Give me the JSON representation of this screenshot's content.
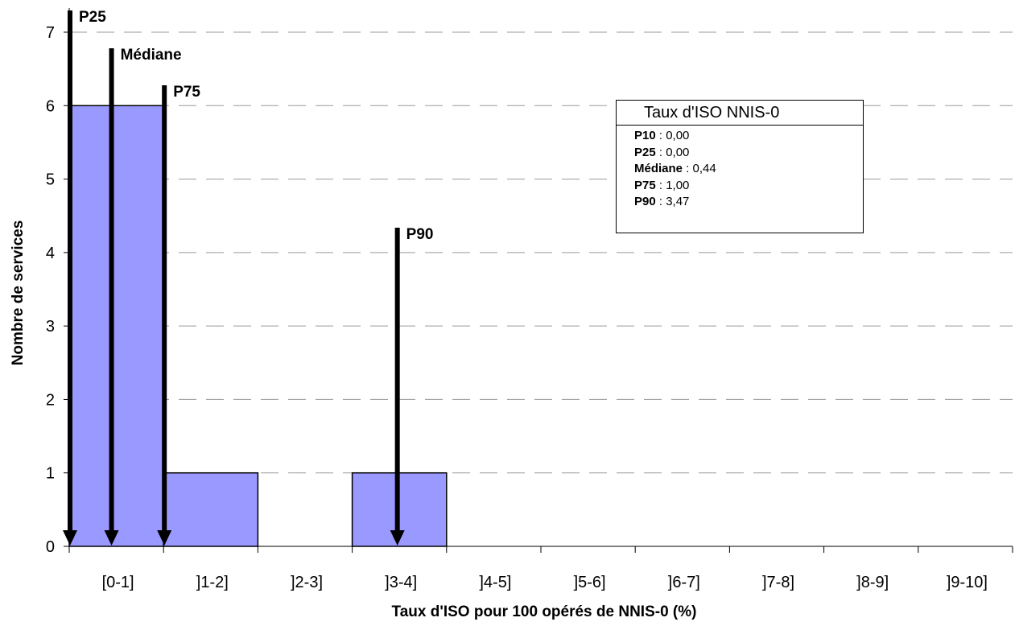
{
  "chart_data": {
    "type": "bar",
    "categories": [
      "[0-1]",
      "]1-2]",
      "]2-3]",
      "]3-4]",
      "]4-5]",
      "]5-6]",
      "]6-7]",
      "]7-8]",
      "]8-9]",
      "]9-10]"
    ],
    "values": [
      6,
      1,
      0,
      1,
      0,
      0,
      0,
      0,
      0,
      0
    ],
    "xlabel": "Taux d'ISO pour 100 opérés de NNIS-0 (%)",
    "ylabel": "Nombre de services",
    "ylim": [
      0,
      7
    ],
    "yticks": [
      "0",
      "1",
      "2",
      "3",
      "4",
      "5",
      "6",
      "7"
    ],
    "grid": true,
    "bar_color": "#9999ff",
    "markers": [
      {
        "label": "P25",
        "x": 0.0
      },
      {
        "label": "Médiane",
        "x": 0.44
      },
      {
        "label": "P75",
        "x": 1.0
      },
      {
        "label": "P90",
        "x": 3.47
      }
    ]
  },
  "legend": {
    "title": "Taux d'ISO NNIS-0",
    "rows": [
      {
        "key": "P10",
        "value": "0,00"
      },
      {
        "key": "P25",
        "value": "0,00"
      },
      {
        "key": "Médiane",
        "value": "0,44"
      },
      {
        "key": "P75",
        "value": "1,00"
      },
      {
        "key": "P90",
        "value": "3,47"
      }
    ]
  }
}
